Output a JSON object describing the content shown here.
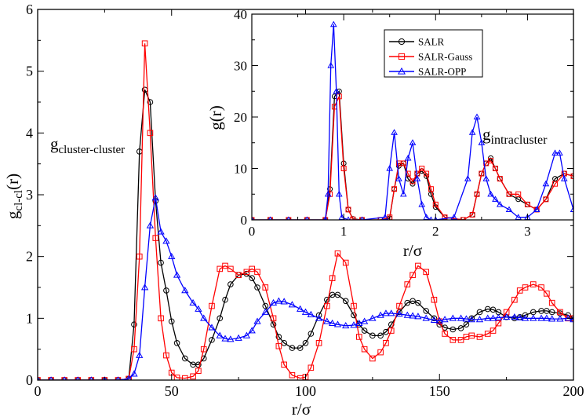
{
  "chart_data": [
    {
      "id": "main",
      "type": "line",
      "xlabel": "r/σ",
      "ylabel_main": "g",
      "ylabel_sub": "cl-cl",
      "ylabel_tail": "(r)",
      "annotation_main": "g",
      "annotation_sub": "cluster-cluster",
      "xlim": [
        0,
        200
      ],
      "ylim": [
        0,
        6
      ],
      "xticks": [
        0,
        50,
        100,
        150,
        200
      ],
      "yticks": [
        0,
        1,
        2,
        3,
        4,
        5,
        6
      ],
      "series": [
        {
          "name": "SALR",
          "color": "#000000",
          "marker": "circle",
          "x": [
            0,
            5,
            10,
            15,
            20,
            25,
            30,
            34,
            36,
            38,
            40,
            42,
            44,
            46,
            48,
            50,
            52,
            55,
            58,
            60,
            62,
            65,
            68,
            70,
            72,
            75,
            78,
            80,
            82,
            85,
            88,
            90,
            92,
            95,
            98,
            100,
            102,
            105,
            108,
            110,
            112,
            115,
            118,
            120,
            122,
            125,
            128,
            130,
            132,
            135,
            138,
            140,
            142,
            145,
            148,
            150,
            152,
            155,
            158,
            160,
            162,
            165,
            168,
            170,
            172,
            175,
            178,
            180,
            182,
            185,
            188,
            190,
            192,
            195,
            198,
            200
          ],
          "y": [
            0,
            0,
            0,
            0,
            0,
            0,
            0,
            0.02,
            0.9,
            3.7,
            4.7,
            4.5,
            2.9,
            1.9,
            1.45,
            0.95,
            0.6,
            0.35,
            0.25,
            0.25,
            0.35,
            0.65,
            1.0,
            1.3,
            1.55,
            1.7,
            1.72,
            1.65,
            1.5,
            1.2,
            0.9,
            0.7,
            0.6,
            0.52,
            0.52,
            0.6,
            0.75,
            1.05,
            1.3,
            1.38,
            1.38,
            1.28,
            1.05,
            0.9,
            0.8,
            0.72,
            0.72,
            0.78,
            0.9,
            1.1,
            1.25,
            1.28,
            1.25,
            1.12,
            1.0,
            0.9,
            0.85,
            0.82,
            0.84,
            0.9,
            1.0,
            1.1,
            1.15,
            1.14,
            1.1,
            1.02,
            1.0,
            1.02,
            1.05,
            1.1,
            1.12,
            1.12,
            1.1,
            1.08,
            1.05,
            1.0
          ]
        },
        {
          "name": "SALR-Gauss",
          "color": "#ff0000",
          "marker": "square",
          "x": [
            0,
            5,
            10,
            15,
            20,
            25,
            30,
            34,
            36,
            38,
            40,
            42,
            44,
            46,
            48,
            50,
            52,
            55,
            58,
            60,
            62,
            65,
            68,
            70,
            72,
            75,
            78,
            80,
            82,
            85,
            88,
            90,
            92,
            95,
            98,
            100,
            102,
            105,
            108,
            110,
            112,
            115,
            118,
            120,
            122,
            125,
            128,
            130,
            132,
            135,
            138,
            140,
            142,
            145,
            148,
            150,
            152,
            155,
            158,
            160,
            162,
            165,
            168,
            170,
            172,
            175,
            178,
            180,
            182,
            185,
            188,
            190,
            192,
            195,
            198,
            200
          ],
          "y": [
            0,
            0,
            0,
            0,
            0,
            0,
            0,
            0.02,
            0.5,
            2.0,
            5.45,
            4.0,
            2.3,
            1.0,
            0.4,
            0.12,
            0.04,
            0.03,
            0.06,
            0.15,
            0.5,
            1.2,
            1.8,
            1.85,
            1.8,
            1.7,
            1.75,
            1.8,
            1.75,
            1.5,
            1.0,
            0.55,
            0.25,
            0.08,
            0.03,
            0.05,
            0.2,
            0.6,
            1.2,
            1.65,
            2.05,
            1.9,
            1.2,
            0.7,
            0.5,
            0.35,
            0.45,
            0.6,
            0.8,
            1.2,
            1.55,
            1.7,
            1.85,
            1.75,
            1.3,
            0.95,
            0.75,
            0.65,
            0.65,
            0.7,
            0.72,
            0.7,
            0.75,
            0.8,
            0.92,
            1.1,
            1.3,
            1.45,
            1.5,
            1.55,
            1.5,
            1.4,
            1.25,
            1.1,
            1.0,
            1.0
          ]
        },
        {
          "name": "SALR-OPP",
          "color": "#0000ff",
          "marker": "triangle",
          "x": [
            0,
            5,
            10,
            15,
            20,
            25,
            30,
            34,
            36,
            38,
            40,
            42,
            44,
            46,
            48,
            50,
            52,
            55,
            58,
            60,
            62,
            65,
            68,
            70,
            72,
            75,
            78,
            80,
            82,
            85,
            88,
            90,
            92,
            95,
            98,
            100,
            102,
            105,
            108,
            110,
            112,
            115,
            118,
            120,
            122,
            125,
            128,
            130,
            132,
            135,
            138,
            140,
            142,
            145,
            148,
            150,
            152,
            155,
            158,
            160,
            162,
            165,
            168,
            170,
            172,
            175,
            178,
            180,
            182,
            185,
            188,
            190,
            192,
            195,
            198,
            200
          ],
          "y": [
            0,
            0,
            0,
            0,
            0,
            0,
            0,
            0.02,
            0.1,
            0.4,
            1.5,
            2.5,
            2.95,
            2.4,
            2.25,
            2.0,
            1.7,
            1.45,
            1.25,
            1.15,
            1.0,
            0.85,
            0.72,
            0.67,
            0.66,
            0.68,
            0.72,
            0.8,
            0.95,
            1.1,
            1.25,
            1.28,
            1.27,
            1.22,
            1.15,
            1.1,
            1.06,
            1.0,
            0.95,
            0.92,
            0.9,
            0.88,
            0.89,
            0.92,
            0.95,
            1.0,
            1.05,
            1.08,
            1.08,
            1.07,
            1.05,
            1.04,
            1.03,
            1.0,
            0.97,
            0.96,
            0.98,
            1.0,
            1.0,
            0.99,
            0.98,
            0.98,
            1.0,
            1.0,
            1.01,
            1.02,
            1.02,
            1.01,
            1.0,
            1.0,
            1.0,
            1.0,
            0.99,
            0.99,
            1.0,
            0.98
          ]
        }
      ]
    },
    {
      "id": "inset",
      "type": "line",
      "xlabel": "r/σ",
      "ylabel": "g(r)",
      "annotation_main": "g",
      "annotation_sub": "intracluster",
      "xlim": [
        0,
        3.5
      ],
      "ylim": [
        0,
        40
      ],
      "xticks": [
        0,
        1,
        2,
        3
      ],
      "yticks": [
        0,
        10,
        20,
        30,
        40
      ],
      "legend": [
        "SALR",
        "SALR-Gauss",
        "SALR-OPP"
      ],
      "legend_position": "top-center",
      "series": [
        {
          "name": "SALR",
          "color": "#000000",
          "marker": "circle",
          "x": [
            0,
            0.2,
            0.4,
            0.6,
            0.8,
            0.85,
            0.9,
            0.95,
            1.0,
            1.05,
            1.1,
            1.2,
            1.4,
            1.5,
            1.55,
            1.6,
            1.65,
            1.7,
            1.75,
            1.8,
            1.85,
            1.9,
            1.95,
            2.0,
            2.1,
            2.3,
            2.4,
            2.45,
            2.5,
            2.55,
            2.6,
            2.65,
            2.7,
            2.8,
            2.9,
            3.0,
            3.1,
            3.2,
            3.3,
            3.4,
            3.5
          ],
          "y": [
            0,
            0,
            0,
            0,
            0,
            6,
            24,
            25,
            11,
            2,
            0.2,
            0,
            0,
            0.3,
            6,
            10.5,
            11,
            8,
            7,
            9,
            9.5,
            8.5,
            5,
            2.5,
            0.5,
            0,
            1,
            5,
            9,
            11,
            12,
            10,
            8,
            5,
            4,
            3,
            2,
            4,
            8,
            9,
            8.5
          ]
        },
        {
          "name": "SALR-Gauss",
          "color": "#ff0000",
          "marker": "square",
          "x": [
            0,
            0.2,
            0.4,
            0.6,
            0.8,
            0.85,
            0.9,
            0.95,
            1.0,
            1.05,
            1.1,
            1.2,
            1.4,
            1.5,
            1.55,
            1.6,
            1.65,
            1.7,
            1.75,
            1.8,
            1.85,
            1.9,
            1.95,
            2.0,
            2.1,
            2.3,
            2.4,
            2.45,
            2.5,
            2.55,
            2.6,
            2.65,
            2.7,
            2.8,
            2.9,
            3.0,
            3.1,
            3.2,
            3.3,
            3.4,
            3.5
          ],
          "y": [
            0,
            0,
            0,
            0,
            0,
            5,
            22,
            24,
            10,
            2,
            0.1,
            0,
            0,
            0.5,
            6,
            11,
            11,
            9,
            7.5,
            9,
            10,
            9,
            6,
            3,
            0.5,
            0,
            1,
            5,
            9,
            11,
            11.5,
            10,
            8,
            5,
            5,
            3,
            2,
            4,
            7,
            9,
            8.5
          ]
        },
        {
          "name": "SALR-OPP",
          "color": "#0000ff",
          "marker": "triangle",
          "x": [
            0,
            0.2,
            0.4,
            0.6,
            0.8,
            0.83,
            0.86,
            0.89,
            0.92,
            0.95,
            0.98,
            1.05,
            1.2,
            1.45,
            1.5,
            1.55,
            1.6,
            1.65,
            1.7,
            1.75,
            1.8,
            1.85,
            1.9,
            1.95,
            2.0,
            2.2,
            2.35,
            2.4,
            2.45,
            2.5,
            2.55,
            2.6,
            2.65,
            2.7,
            2.8,
            2.9,
            3.0,
            3.1,
            3.2,
            3.3,
            3.35,
            3.4,
            3.5
          ],
          "y": [
            0,
            0,
            0,
            0,
            0,
            5,
            30,
            38,
            25,
            5,
            0.5,
            0,
            0,
            0.5,
            10,
            17,
            8,
            5,
            12,
            15,
            8,
            3,
            0.5,
            0,
            0,
            0.5,
            8,
            17,
            20,
            15,
            8,
            5,
            4,
            3,
            2,
            0.5,
            0.5,
            2,
            7,
            13,
            13,
            8,
            2
          ]
        }
      ]
    }
  ]
}
